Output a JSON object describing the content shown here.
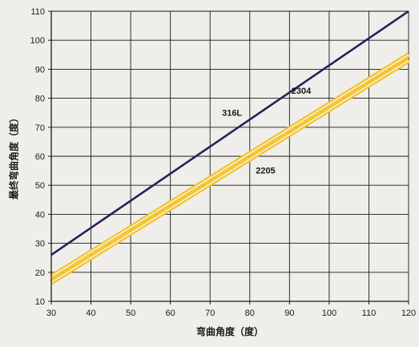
{
  "chart_data": {
    "type": "line",
    "xlabel": "弯曲角度（度）",
    "ylabel": "最终弯曲角度（度）",
    "xlim": [
      30,
      120
    ],
    "ylim": [
      10,
      110
    ],
    "xticks": [
      30,
      40,
      50,
      60,
      70,
      80,
      90,
      100,
      110,
      120
    ],
    "yticks": [
      10,
      20,
      30,
      40,
      50,
      60,
      70,
      80,
      90,
      100,
      110
    ],
    "grid": true,
    "series": [
      {
        "name": "316L",
        "x": [
          30,
          120
        ],
        "y": [
          26,
          110
        ],
        "color": "#2a1f5c",
        "style": "solid"
      },
      {
        "name": "2304",
        "x": [
          30,
          120
        ],
        "y": [
          18.5,
          95
        ],
        "color": "#f2c230",
        "style": "double"
      },
      {
        "name": "2205",
        "x": [
          30,
          120
        ],
        "y": [
          16.5,
          93
        ],
        "color": "#f2c230",
        "style": "double"
      }
    ],
    "annotations": [
      {
        "text": "316L",
        "x": 73,
        "y": 74
      },
      {
        "text": "2304",
        "x": 90.5,
        "y": 81.5
      },
      {
        "text": "2205",
        "x": 81.5,
        "y": 54
      }
    ]
  }
}
